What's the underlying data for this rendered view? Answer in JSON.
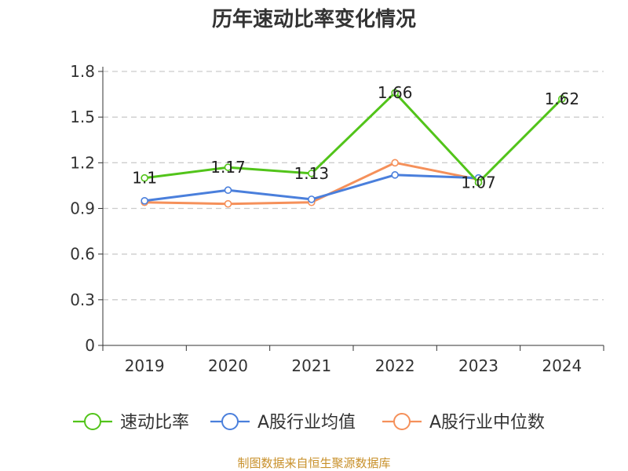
{
  "chart_data": {
    "type": "line",
    "title": "历年速动比率变化情况",
    "xlabel": "",
    "ylabel": "",
    "categories": [
      "2019",
      "2020",
      "2021",
      "2022",
      "2023",
      "2024"
    ],
    "ylim": [
      0,
      1.8
    ],
    "yticks": [
      "0",
      "0.3",
      "0.6",
      "0.9",
      "1.2",
      "1.5",
      "1.8"
    ],
    "grid": true,
    "legend_position": "bottom",
    "series": [
      {
        "name": "速动比率",
        "color": "#52c41a",
        "values": [
          1.1,
          1.17,
          1.13,
          1.66,
          1.07,
          1.62
        ],
        "data_labels": [
          "1.1",
          "1.17",
          "1.13",
          "1.66",
          "1.07",
          "1.62"
        ]
      },
      {
        "name": "A股行业均值",
        "color": "#4a7fdc",
        "values": [
          0.95,
          1.02,
          0.96,
          1.12,
          1.1,
          null
        ]
      },
      {
        "name": "A股行业中位数",
        "color": "#f5905a",
        "values": [
          0.94,
          0.93,
          0.94,
          1.2,
          1.09,
          null
        ]
      }
    ]
  },
  "footer": {
    "source": "制图数据来自恒生聚源数据库"
  }
}
